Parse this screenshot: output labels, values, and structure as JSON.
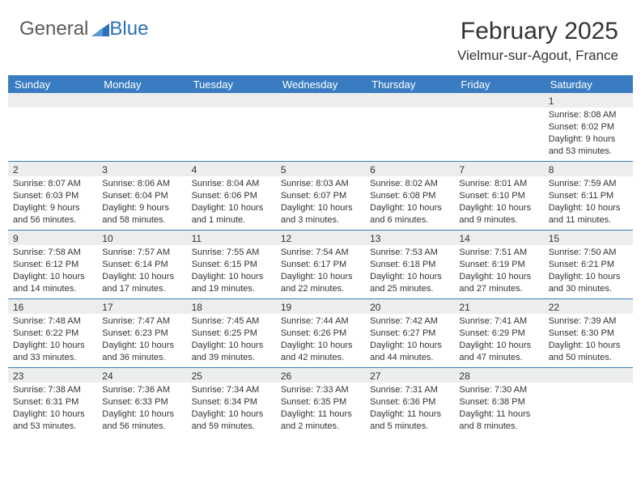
{
  "logo": {
    "text1": "General",
    "text2": "Blue"
  },
  "header": {
    "month_year": "February 2025",
    "location": "Vielmur-sur-Agout, France"
  },
  "colors": {
    "header_bar": "#3a7cc2",
    "header_text": "#ffffff",
    "rule": "#3a7cc2",
    "daynum_bg": "#eceeee",
    "body_text": "#333333",
    "logo_blue": "#2d6fb8"
  },
  "day_names": [
    "Sunday",
    "Monday",
    "Tuesday",
    "Wednesday",
    "Thursday",
    "Friday",
    "Saturday"
  ],
  "weeks": [
    [
      null,
      null,
      null,
      null,
      null,
      null,
      {
        "n": "1",
        "sunrise": "Sunrise: 8:08 AM",
        "sunset": "Sunset: 6:02 PM",
        "daylight": "Daylight: 9 hours and 53 minutes."
      }
    ],
    [
      {
        "n": "2",
        "sunrise": "Sunrise: 8:07 AM",
        "sunset": "Sunset: 6:03 PM",
        "daylight": "Daylight: 9 hours and 56 minutes."
      },
      {
        "n": "3",
        "sunrise": "Sunrise: 8:06 AM",
        "sunset": "Sunset: 6:04 PM",
        "daylight": "Daylight: 9 hours and 58 minutes."
      },
      {
        "n": "4",
        "sunrise": "Sunrise: 8:04 AM",
        "sunset": "Sunset: 6:06 PM",
        "daylight": "Daylight: 10 hours and 1 minute."
      },
      {
        "n": "5",
        "sunrise": "Sunrise: 8:03 AM",
        "sunset": "Sunset: 6:07 PM",
        "daylight": "Daylight: 10 hours and 3 minutes."
      },
      {
        "n": "6",
        "sunrise": "Sunrise: 8:02 AM",
        "sunset": "Sunset: 6:08 PM",
        "daylight": "Daylight: 10 hours and 6 minutes."
      },
      {
        "n": "7",
        "sunrise": "Sunrise: 8:01 AM",
        "sunset": "Sunset: 6:10 PM",
        "daylight": "Daylight: 10 hours and 9 minutes."
      },
      {
        "n": "8",
        "sunrise": "Sunrise: 7:59 AM",
        "sunset": "Sunset: 6:11 PM",
        "daylight": "Daylight: 10 hours and 11 minutes."
      }
    ],
    [
      {
        "n": "9",
        "sunrise": "Sunrise: 7:58 AM",
        "sunset": "Sunset: 6:12 PM",
        "daylight": "Daylight: 10 hours and 14 minutes."
      },
      {
        "n": "10",
        "sunrise": "Sunrise: 7:57 AM",
        "sunset": "Sunset: 6:14 PM",
        "daylight": "Daylight: 10 hours and 17 minutes."
      },
      {
        "n": "11",
        "sunrise": "Sunrise: 7:55 AM",
        "sunset": "Sunset: 6:15 PM",
        "daylight": "Daylight: 10 hours and 19 minutes."
      },
      {
        "n": "12",
        "sunrise": "Sunrise: 7:54 AM",
        "sunset": "Sunset: 6:17 PM",
        "daylight": "Daylight: 10 hours and 22 minutes."
      },
      {
        "n": "13",
        "sunrise": "Sunrise: 7:53 AM",
        "sunset": "Sunset: 6:18 PM",
        "daylight": "Daylight: 10 hours and 25 minutes."
      },
      {
        "n": "14",
        "sunrise": "Sunrise: 7:51 AM",
        "sunset": "Sunset: 6:19 PM",
        "daylight": "Daylight: 10 hours and 27 minutes."
      },
      {
        "n": "15",
        "sunrise": "Sunrise: 7:50 AM",
        "sunset": "Sunset: 6:21 PM",
        "daylight": "Daylight: 10 hours and 30 minutes."
      }
    ],
    [
      {
        "n": "16",
        "sunrise": "Sunrise: 7:48 AM",
        "sunset": "Sunset: 6:22 PM",
        "daylight": "Daylight: 10 hours and 33 minutes."
      },
      {
        "n": "17",
        "sunrise": "Sunrise: 7:47 AM",
        "sunset": "Sunset: 6:23 PM",
        "daylight": "Daylight: 10 hours and 36 minutes."
      },
      {
        "n": "18",
        "sunrise": "Sunrise: 7:45 AM",
        "sunset": "Sunset: 6:25 PM",
        "daylight": "Daylight: 10 hours and 39 minutes."
      },
      {
        "n": "19",
        "sunrise": "Sunrise: 7:44 AM",
        "sunset": "Sunset: 6:26 PM",
        "daylight": "Daylight: 10 hours and 42 minutes."
      },
      {
        "n": "20",
        "sunrise": "Sunrise: 7:42 AM",
        "sunset": "Sunset: 6:27 PM",
        "daylight": "Daylight: 10 hours and 44 minutes."
      },
      {
        "n": "21",
        "sunrise": "Sunrise: 7:41 AM",
        "sunset": "Sunset: 6:29 PM",
        "daylight": "Daylight: 10 hours and 47 minutes."
      },
      {
        "n": "22",
        "sunrise": "Sunrise: 7:39 AM",
        "sunset": "Sunset: 6:30 PM",
        "daylight": "Daylight: 10 hours and 50 minutes."
      }
    ],
    [
      {
        "n": "23",
        "sunrise": "Sunrise: 7:38 AM",
        "sunset": "Sunset: 6:31 PM",
        "daylight": "Daylight: 10 hours and 53 minutes."
      },
      {
        "n": "24",
        "sunrise": "Sunrise: 7:36 AM",
        "sunset": "Sunset: 6:33 PM",
        "daylight": "Daylight: 10 hours and 56 minutes."
      },
      {
        "n": "25",
        "sunrise": "Sunrise: 7:34 AM",
        "sunset": "Sunset: 6:34 PM",
        "daylight": "Daylight: 10 hours and 59 minutes."
      },
      {
        "n": "26",
        "sunrise": "Sunrise: 7:33 AM",
        "sunset": "Sunset: 6:35 PM",
        "daylight": "Daylight: 11 hours and 2 minutes."
      },
      {
        "n": "27",
        "sunrise": "Sunrise: 7:31 AM",
        "sunset": "Sunset: 6:36 PM",
        "daylight": "Daylight: 11 hours and 5 minutes."
      },
      {
        "n": "28",
        "sunrise": "Sunrise: 7:30 AM",
        "sunset": "Sunset: 6:38 PM",
        "daylight": "Daylight: 11 hours and 8 minutes."
      },
      null
    ]
  ]
}
